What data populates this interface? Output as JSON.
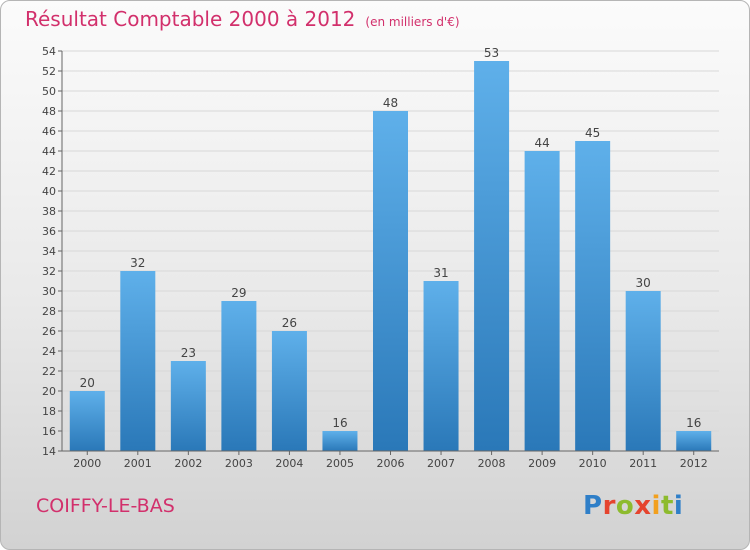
{
  "header": {
    "title": "Résultat Comptable 2000 à 2012",
    "unit_note": "(en milliers d'€)"
  },
  "footer": {
    "place": "COIFFY-LE-BAS",
    "logo_letters": [
      "P",
      "r",
      "o",
      "x",
      "i",
      "t",
      "i"
    ],
    "logo_colors": [
      "#2f7fc8",
      "#e5442e",
      "#8dbb2e",
      "#e5442e",
      "#f2a01e",
      "#8dbb2e",
      "#2f7fc8"
    ]
  },
  "colors": {
    "title": "#d2306c",
    "bar_light": "#5fb0ea",
    "bar_dark": "#2a78b8",
    "axis": "#666666",
    "grid": "#d8d8d8"
  },
  "chart_data": {
    "type": "bar",
    "title": "Résultat Comptable 2000 à 2012",
    "categories": [
      "2000",
      "2001",
      "2002",
      "2003",
      "2004",
      "2005",
      "2006",
      "2007",
      "2008",
      "2009",
      "2010",
      "2011",
      "2012"
    ],
    "values": [
      20,
      32,
      23,
      29,
      26,
      16,
      48,
      31,
      53,
      44,
      45,
      30,
      16
    ],
    "ylim": [
      14,
      54
    ],
    "yticks": [
      14,
      16,
      18,
      20,
      22,
      24,
      26,
      28,
      30,
      32,
      34,
      36,
      38,
      40,
      42,
      44,
      46,
      48,
      50,
      52,
      54
    ],
    "grid": true,
    "data_labels": true
  }
}
